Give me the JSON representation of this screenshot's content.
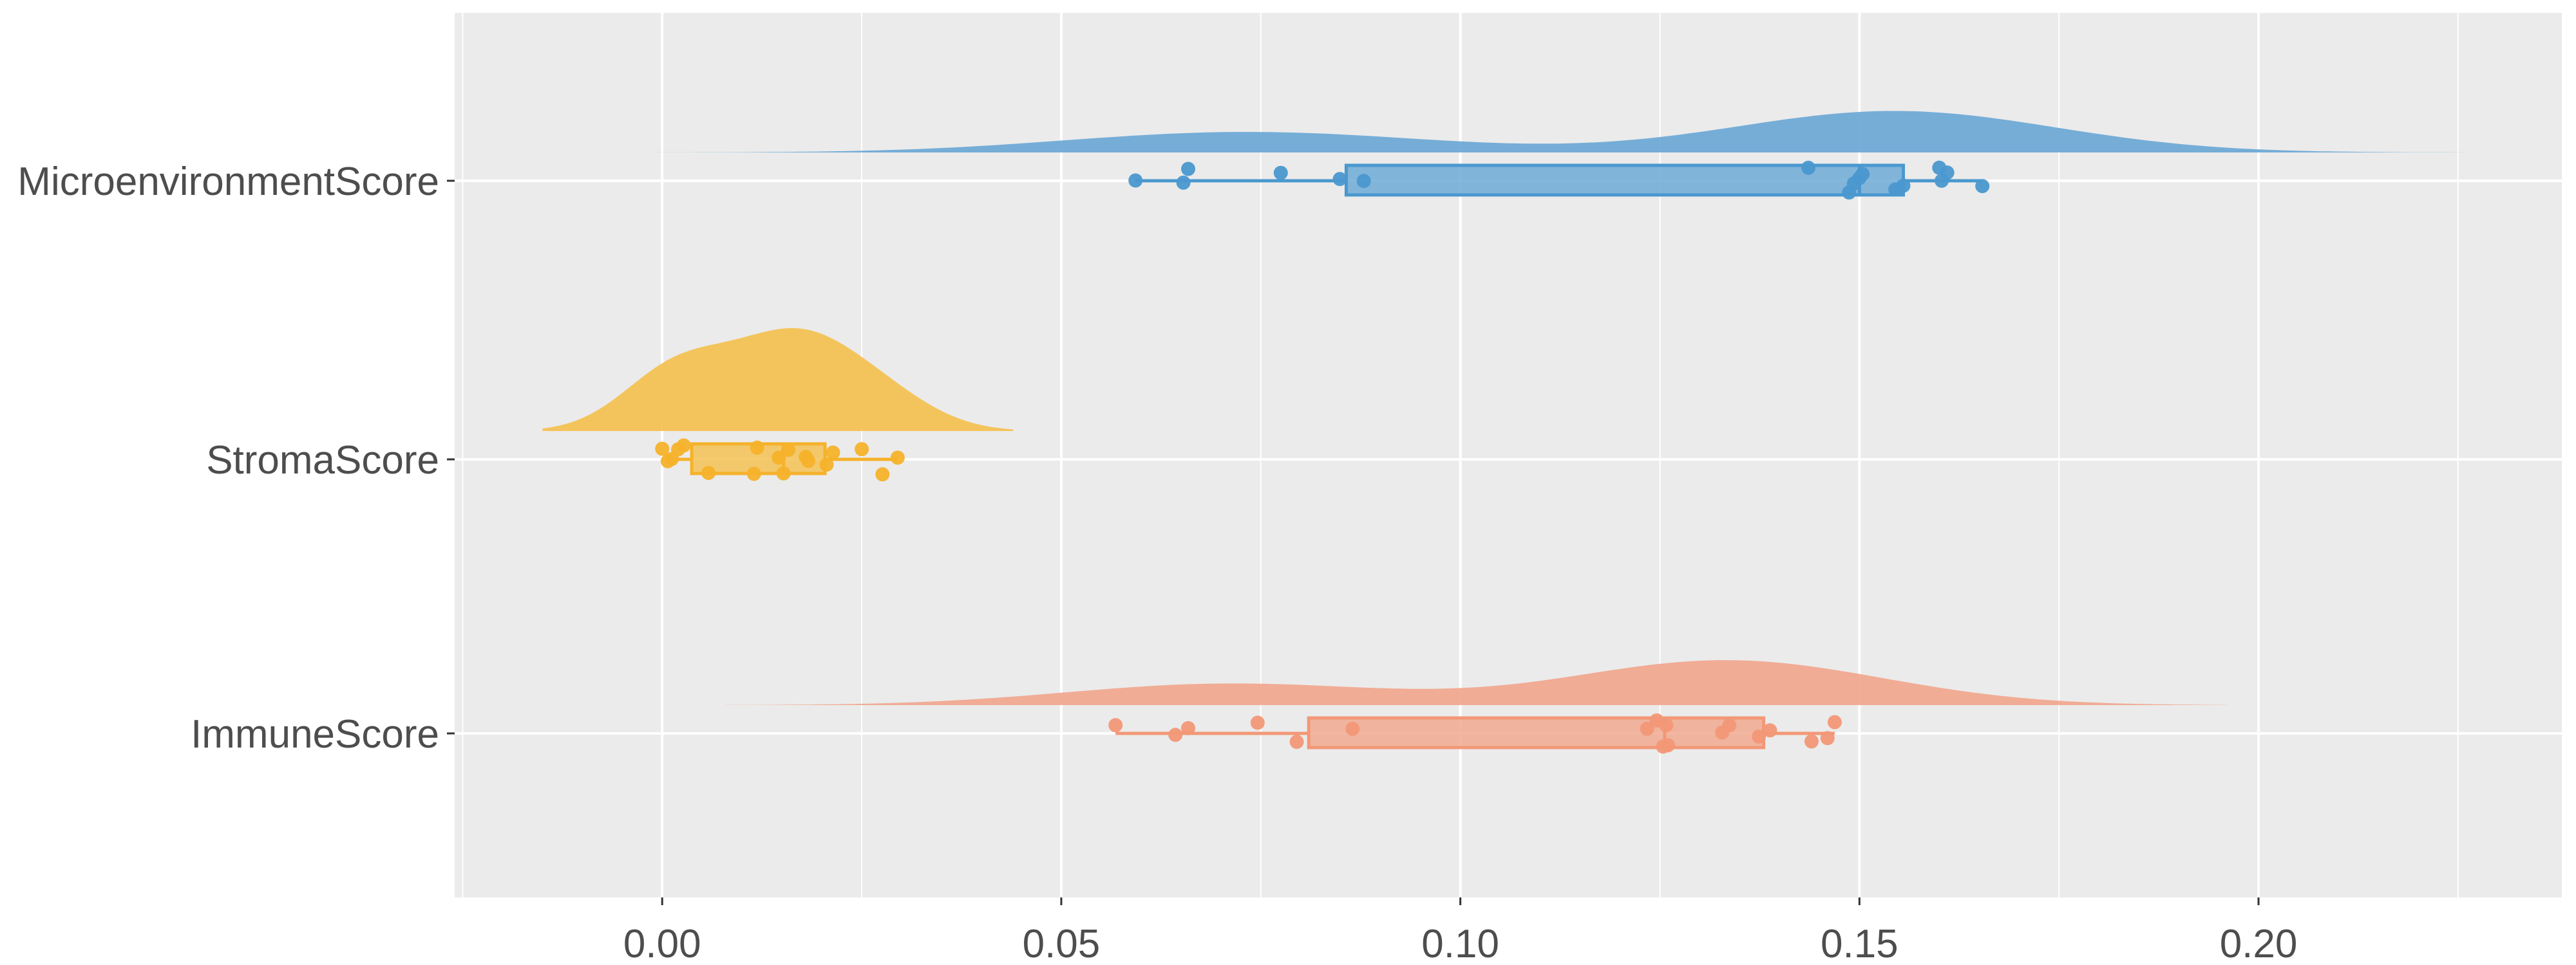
{
  "chart_data": {
    "type": "raincloud",
    "title": "",
    "xlabel": "",
    "ylabel": "",
    "xlim": [
      -0.026,
      0.238
    ],
    "x_ticks": [
      "0.00",
      "0.05",
      "0.10",
      "0.15",
      "0.20"
    ],
    "x_tick_values": [
      0,
      0.05,
      0.1,
      0.15,
      0.2
    ],
    "grid": true,
    "legend": "none",
    "categories": [
      "MicroenvironmentScore",
      "StromaScore",
      "ImmuneScore"
    ],
    "series": [
      {
        "name": "MicroenvironmentScore",
        "color": "#4A98CF",
        "fill": "#6FAAD6",
        "density_range": [
          -0.001,
          0.226
        ],
        "bandwidth": 0.019,
        "box": {
          "q1": 0.0857,
          "median": 0.15,
          "q3": 0.1555,
          "whisker_low": 0.0593,
          "whisker_high": 0.1654
        },
        "points": [
          0.0593,
          0.0653,
          0.0659,
          0.0775,
          0.0849,
          0.0879,
          0.1436,
          0.1487,
          0.1493,
          0.15,
          0.1504,
          0.1545,
          0.1555,
          0.16,
          0.1603,
          0.161,
          0.1654
        ]
      },
      {
        "name": "StromaScore",
        "color": "#F5B22B",
        "fill": "#F4C254",
        "density_range": [
          -0.015,
          0.044
        ],
        "bandwidth": 0.0065,
        "box": {
          "q1": 0.0037,
          "median": 0.0152,
          "q3": 0.0204,
          "whisker_low": 0.0,
          "whisker_high": 0.0295
        },
        "points": [
          0.0,
          0.0007,
          0.0012,
          0.002,
          0.0027,
          0.0058,
          0.0115,
          0.0119,
          0.0146,
          0.0152,
          0.0158,
          0.018,
          0.0183,
          0.0206,
          0.0214,
          0.025,
          0.0276,
          0.0295
        ]
      },
      {
        "name": "ImmuneScore",
        "color": "#F29877",
        "fill": "#F1A990",
        "density_range": [
          0.008,
          0.196
        ],
        "bandwidth": 0.017,
        "box": {
          "q1": 0.081,
          "median": 0.1256,
          "q3": 0.138,
          "whisker_low": 0.0568,
          "whisker_high": 0.1469
        },
        "points": [
          0.0568,
          0.0643,
          0.0659,
          0.0746,
          0.0795,
          0.0865,
          0.1234,
          0.1246,
          0.1254,
          0.1258,
          0.126,
          0.1328,
          0.1337,
          0.1374,
          0.1388,
          0.144,
          0.146,
          0.1469
        ]
      }
    ]
  }
}
